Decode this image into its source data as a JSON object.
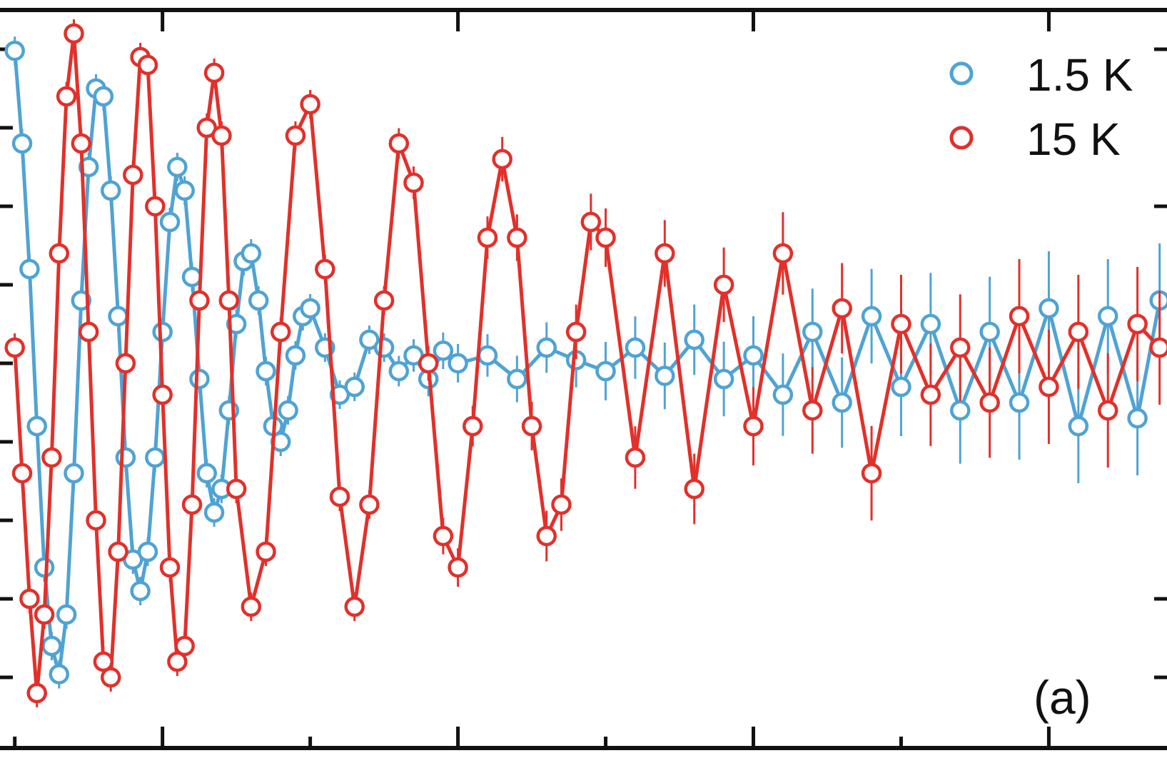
{
  "chart_data": {
    "type": "scatter",
    "panel_label": "(a)",
    "xlabel": "",
    "ylabel": "",
    "xlim": [
      -0.1,
      7.8
    ],
    "ylim": [
      -2.45,
      2.25
    ],
    "x_ticks_major": [
      1,
      3,
      5,
      7
    ],
    "x_ticks_minor": [
      0,
      2,
      4,
      6
    ],
    "y_ticks": [
      -2,
      -1.5,
      -1,
      -0.5,
      0,
      0.5,
      1,
      1.5,
      2
    ],
    "y_ticks_right": [
      2,
      1,
      -1.5,
      -2
    ],
    "grid": false,
    "legend_position": "top-right",
    "colors": {
      "1.5 K": "#4fa3d4",
      "15 K": "#e2302a",
      "axes": "#111111"
    },
    "series": [
      {
        "name": "1.5 K",
        "marker": "open-circle",
        "fit_line": true,
        "x": [
          0.0,
          0.05,
          0.1,
          0.15,
          0.2,
          0.25,
          0.3,
          0.35,
          0.4,
          0.45,
          0.5,
          0.55,
          0.6,
          0.65,
          0.7,
          0.75,
          0.8,
          0.85,
          0.9,
          0.95,
          1.0,
          1.05,
          1.1,
          1.15,
          1.2,
          1.25,
          1.3,
          1.35,
          1.4,
          1.45,
          1.5,
          1.55,
          1.6,
          1.65,
          1.7,
          1.75,
          1.8,
          1.85,
          1.9,
          1.95,
          2.0,
          2.1,
          2.2,
          2.3,
          2.4,
          2.5,
          2.6,
          2.7,
          2.8,
          2.9,
          3.0,
          3.2,
          3.4,
          3.6,
          3.8,
          4.0,
          4.2,
          4.4,
          4.6,
          4.8,
          5.0,
          5.2,
          5.4,
          5.6,
          5.8,
          6.0,
          6.2,
          6.4,
          6.6,
          6.8,
          7.0,
          7.2,
          7.4,
          7.6,
          7.75
        ],
        "y": [
          1.99,
          1.4,
          0.6,
          -0.4,
          -1.3,
          -1.8,
          -1.98,
          -1.6,
          -0.7,
          0.4,
          1.25,
          1.75,
          1.7,
          1.1,
          0.3,
          -0.6,
          -1.25,
          -1.45,
          -1.2,
          -0.6,
          0.2,
          0.9,
          1.25,
          1.1,
          0.55,
          -0.1,
          -0.7,
          -0.95,
          -0.8,
          -0.3,
          0.25,
          0.65,
          0.7,
          0.4,
          -0.05,
          -0.4,
          -0.5,
          -0.3,
          0.05,
          0.3,
          0.35,
          0.1,
          -0.2,
          -0.15,
          0.15,
          0.1,
          -0.05,
          0.05,
          -0.1,
          0.08,
          0.0,
          0.05,
          -0.1,
          0.1,
          0.02,
          -0.05,
          0.1,
          -0.08,
          0.15,
          -0.1,
          0.05,
          -0.2,
          0.2,
          -0.25,
          0.3,
          -0.15,
          0.25,
          -0.3,
          0.2,
          -0.25,
          0.35,
          -0.4,
          0.3,
          -0.35,
          0.4
        ]
      },
      {
        "name": "15 K",
        "marker": "open-circle",
        "fit_line": true,
        "x": [
          0.0,
          0.05,
          0.1,
          0.15,
          0.2,
          0.25,
          0.3,
          0.35,
          0.4,
          0.45,
          0.5,
          0.55,
          0.6,
          0.65,
          0.7,
          0.75,
          0.8,
          0.85,
          0.9,
          0.95,
          1.0,
          1.05,
          1.1,
          1.15,
          1.2,
          1.25,
          1.3,
          1.35,
          1.4,
          1.45,
          1.5,
          1.6,
          1.7,
          1.8,
          1.9,
          2.0,
          2.1,
          2.2,
          2.3,
          2.4,
          2.5,
          2.6,
          2.7,
          2.8,
          2.9,
          3.0,
          3.1,
          3.2,
          3.3,
          3.4,
          3.5,
          3.6,
          3.7,
          3.8,
          3.9,
          4.0,
          4.2,
          4.4,
          4.6,
          4.8,
          5.0,
          5.2,
          5.4,
          5.6,
          5.8,
          6.0,
          6.2,
          6.4,
          6.6,
          6.8,
          7.0,
          7.2,
          7.4,
          7.6,
          7.75
        ],
        "y": [
          0.1,
          -0.7,
          -1.5,
          -2.1,
          -1.6,
          -0.6,
          0.7,
          1.7,
          2.1,
          1.4,
          0.2,
          -1.0,
          -1.9,
          -2.0,
          -1.2,
          0.0,
          1.2,
          1.95,
          1.9,
          1.0,
          -0.2,
          -1.3,
          -1.9,
          -1.8,
          -0.9,
          0.4,
          1.5,
          1.85,
          1.45,
          0.4,
          -0.8,
          -1.55,
          -1.2,
          0.2,
          1.45,
          1.65,
          0.6,
          -0.85,
          -1.55,
          -0.9,
          0.4,
          1.4,
          1.15,
          0.0,
          -1.1,
          -1.3,
          -0.4,
          0.8,
          1.3,
          0.8,
          -0.4,
          -1.1,
          -0.9,
          0.2,
          0.9,
          0.8,
          -0.6,
          0.7,
          -0.8,
          0.5,
          -0.4,
          0.7,
          -0.3,
          0.35,
          -0.7,
          0.25,
          -0.2,
          0.1,
          -0.25,
          0.3,
          -0.15,
          0.2,
          -0.3,
          0.25,
          0.1
        ]
      }
    ]
  }
}
